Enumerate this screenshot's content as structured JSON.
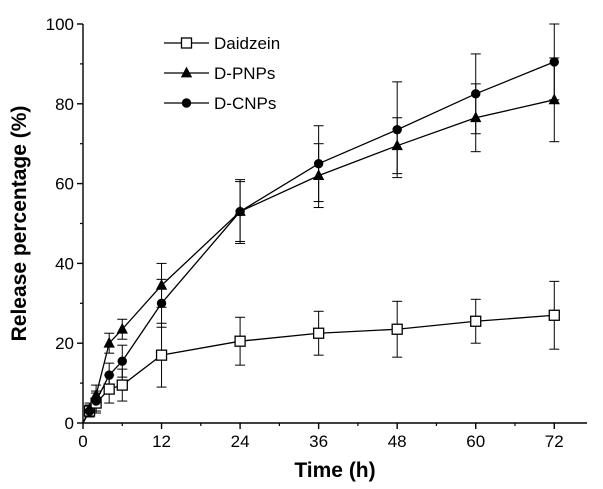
{
  "chart_data": {
    "type": "line",
    "title": "",
    "xlabel": "Time (h)",
    "ylabel": "Release percentage (%)",
    "xlim": [
      0,
      77
    ],
    "ylim": [
      0,
      100
    ],
    "x_ticks": [
      0,
      12,
      24,
      36,
      48,
      60,
      72
    ],
    "y_ticks": [
      0,
      20,
      40,
      60,
      80,
      100
    ],
    "grid": false,
    "legend_position": "top-left",
    "x": [
      0,
      1,
      2,
      4,
      6,
      12,
      24,
      36,
      48,
      60,
      72
    ],
    "series": [
      {
        "name": "Daidzein",
        "marker": "open-square",
        "color": "#000000",
        "values": [
          0,
          3,
          5,
          8.5,
          9.5,
          17,
          20.5,
          22.5,
          23.5,
          25.5,
          27
        ],
        "errors": [
          0,
          1.5,
          2.5,
          3.5,
          4,
          8,
          6,
          5.5,
          7,
          5.5,
          8.5
        ]
      },
      {
        "name": "D-PNPs",
        "marker": "filled-triangle",
        "color": "#000000",
        "values": [
          0,
          3.5,
          7,
          20,
          23.5,
          34.5,
          53,
          62,
          69.5,
          76.5,
          81
        ],
        "errors": [
          0,
          1.5,
          2.5,
          2.5,
          2.5,
          5.5,
          7.5,
          8,
          7,
          8.5,
          10.5
        ]
      },
      {
        "name": "D-CNPs",
        "marker": "filled-circle",
        "color": "#000000",
        "values": [
          0,
          3,
          5.5,
          12,
          15.5,
          30,
          53,
          65,
          73.5,
          82.5,
          90.5
        ],
        "errors": [
          0,
          1.5,
          2.5,
          3,
          4,
          6,
          8,
          9.5,
          12,
          10,
          9.5
        ]
      }
    ]
  }
}
